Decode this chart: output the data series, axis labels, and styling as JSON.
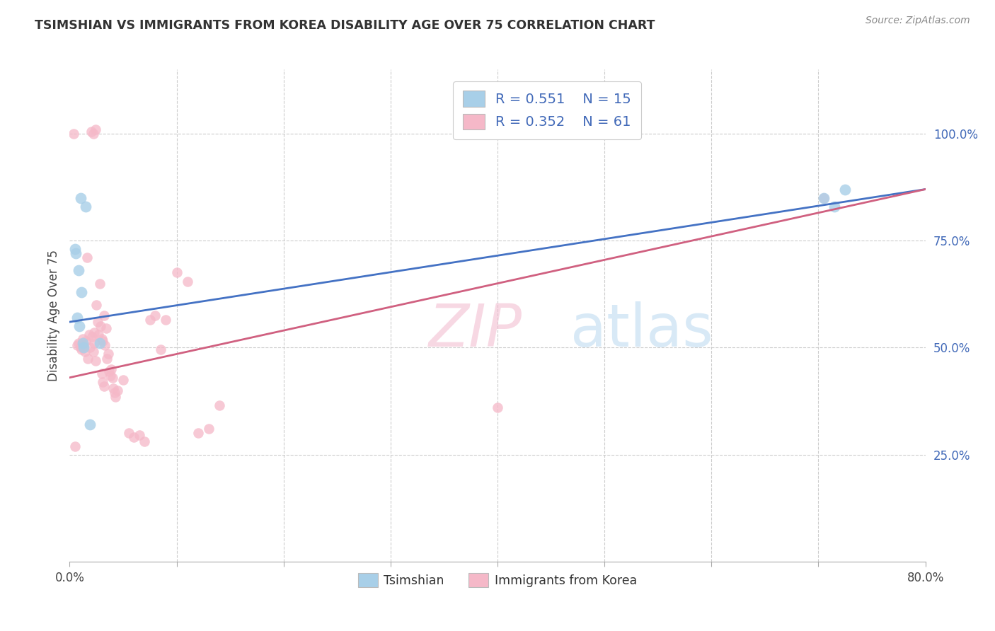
{
  "title": "TSIMSHIAN VS IMMIGRANTS FROM KOREA DISABILITY AGE OVER 75 CORRELATION CHART",
  "source": "Source: ZipAtlas.com",
  "ylabel": "Disability Age Over 75",
  "xlim": [
    0.0,
    80.0
  ],
  "ylim": [
    0.0,
    115.0
  ],
  "blue_color": "#a8cfe8",
  "pink_color": "#f5b8c8",
  "blue_line_color": "#4472c4",
  "pink_line_color": "#d06080",
  "legend_text_color": "#4169b8",
  "watermark_color": "#cce5f5",
  "tsimshian_x": [
    1.0,
    1.5,
    0.5,
    0.6,
    0.8,
    1.1,
    0.7,
    0.9,
    1.2,
    1.3,
    2.8,
    70.5,
    71.5,
    72.5,
    1.9
  ],
  "tsimshian_y": [
    85.0,
    83.0,
    73.0,
    72.0,
    68.0,
    63.0,
    57.0,
    55.0,
    51.0,
    50.0,
    51.0,
    85.0,
    83.0,
    87.0,
    32.0
  ],
  "korea_x": [
    2.0,
    2.2,
    2.4,
    0.4,
    1.6,
    2.8,
    2.5,
    0.7,
    0.8,
    1.0,
    1.1,
    1.2,
    1.3,
    1.4,
    1.5,
    1.7,
    1.8,
    1.9,
    2.1,
    2.3,
    2.6,
    2.7,
    2.9,
    3.0,
    3.1,
    3.2,
    3.3,
    3.4,
    3.5,
    3.6,
    3.7,
    3.8,
    3.9,
    4.0,
    4.1,
    4.2,
    4.3,
    4.5,
    5.0,
    5.5,
    6.0,
    6.5,
    7.0,
    7.5,
    8.0,
    8.5,
    9.0,
    10.0,
    11.0,
    12.0,
    13.0,
    14.0,
    40.0,
    70.5,
    2.2,
    2.3,
    2.4,
    3.0,
    3.1,
    3.2,
    0.5
  ],
  "korea_y": [
    100.5,
    100.0,
    101.0,
    100.0,
    71.0,
    65.0,
    60.0,
    50.5,
    51.0,
    50.0,
    49.5,
    52.0,
    50.5,
    49.0,
    51.5,
    47.5,
    53.0,
    50.0,
    52.5,
    53.5,
    56.0,
    53.0,
    55.0,
    52.0,
    51.5,
    57.5,
    50.5,
    54.5,
    47.5,
    48.5,
    44.5,
    43.5,
    45.0,
    43.0,
    40.5,
    39.5,
    38.5,
    40.0,
    42.5,
    30.0,
    29.0,
    29.5,
    28.0,
    56.5,
    57.5,
    49.5,
    56.5,
    67.5,
    65.5,
    30.0,
    31.0,
    36.5,
    36.0,
    85.0,
    49.0,
    51.0,
    47.0,
    44.0,
    42.0,
    41.0,
    27.0
  ],
  "blue_line_x0": 0.0,
  "blue_line_y0": 56.0,
  "blue_line_x1": 80.0,
  "blue_line_y1": 87.0,
  "pink_line_x0": 0.0,
  "pink_line_y0": 43.0,
  "pink_line_x1": 80.0,
  "pink_line_y1": 87.0
}
